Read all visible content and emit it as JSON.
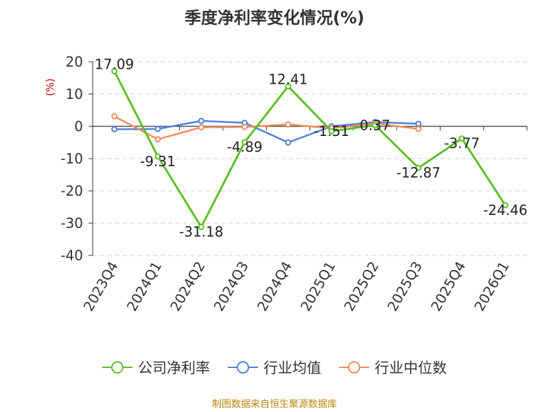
{
  "chart_data": {
    "type": "line",
    "title": "季度净利率变化情况(%)",
    "ylabel": "(%)",
    "xlabel": "",
    "ylim": [
      -40,
      20
    ],
    "yticks": [
      20,
      10,
      0,
      -10,
      -20,
      -30,
      -40
    ],
    "grid": true,
    "legend_position": "bottom",
    "categories": [
      "2023Q4",
      "2024Q1",
      "2024Q2",
      "2024Q3",
      "2024Q4",
      "2025Q1",
      "2025Q2",
      "2025Q3",
      "2025Q4",
      "2026Q1"
    ],
    "series": [
      {
        "name": "公司净利率",
        "color": "#5cbf2a",
        "values": [
          17.09,
          -9.31,
          -31.18,
          -4.89,
          12.41,
          -1.51,
          0.37,
          -12.87,
          -3.77,
          -24.46
        ],
        "labels": [
          "17.09",
          "-9.31",
          "-31.18",
          "-4.89",
          "12.41",
          "-1.51",
          "0.37",
          "-12.87",
          "-3.77",
          "-24.46"
        ]
      },
      {
        "name": "行业均值",
        "color": "#4f7fdb",
        "values": [
          -0.9,
          -0.8,
          1.7,
          1.1,
          -5.0,
          0.0,
          1.3,
          0.8,
          null,
          null
        ]
      },
      {
        "name": "行业中位数",
        "color": "#f28c5a",
        "values": [
          3.1,
          -4.0,
          -0.3,
          -0.2,
          0.6,
          -0.6,
          0.9,
          -0.8,
          null,
          null
        ]
      }
    ]
  },
  "footer": {
    "source": "制图数据来自恒生聚源数据库"
  }
}
